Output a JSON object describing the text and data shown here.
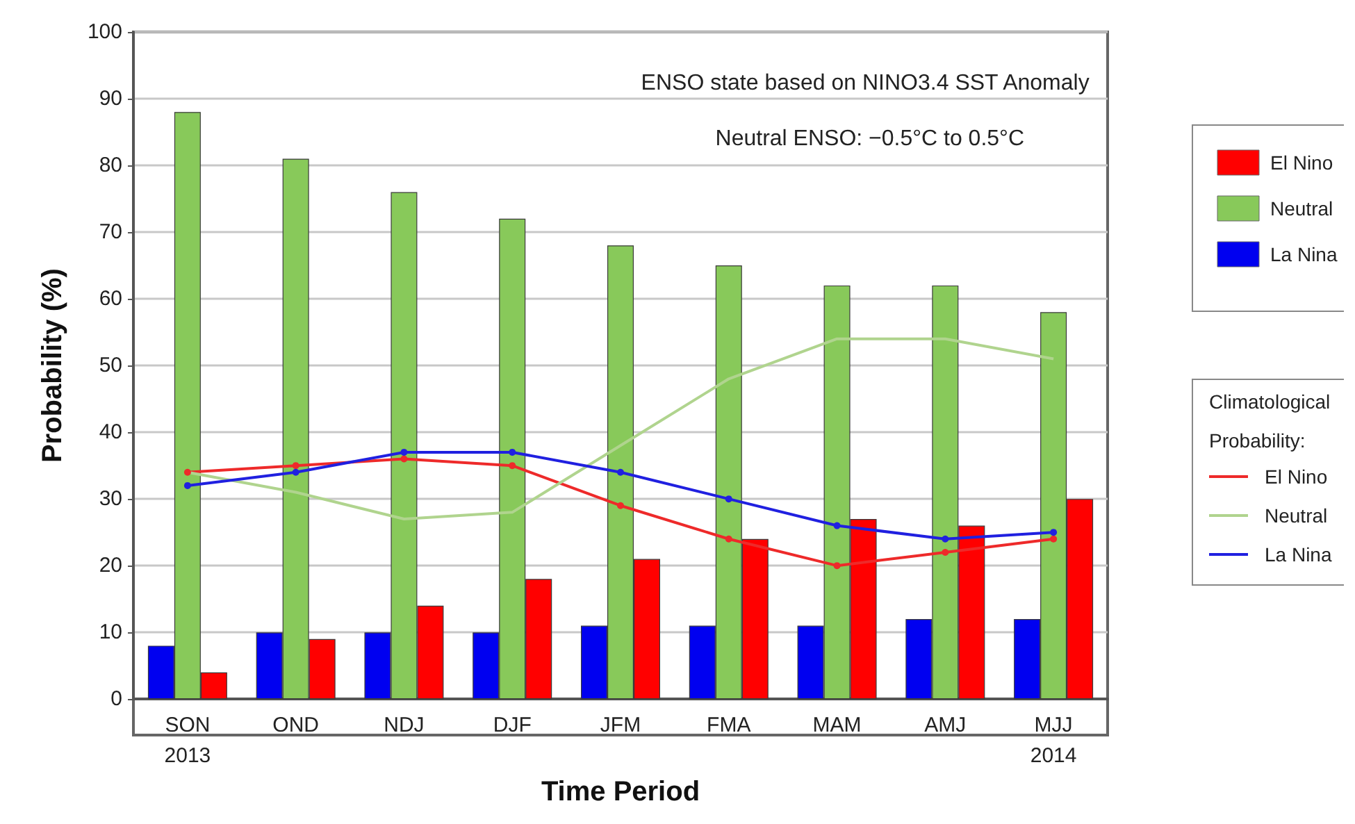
{
  "chart_data": {
    "type": "bar",
    "xlabel": "Time Period",
    "ylabel": "Probability (%)",
    "legend_title": "Climatological Probability:",
    "annotations": [
      "ENSO state based on NINO3.4 SST Anomaly",
      "Neutral ENSO: −0.5°C to 0.5°C"
    ],
    "categories": [
      "SON\n2013",
      "OND",
      "NDJ",
      "DJF",
      "JFM",
      "FMA",
      "MAM",
      "AMJ",
      "MJJ\n2014"
    ],
    "ylim": [
      0,
      100
    ],
    "yticks": [
      0,
      10,
      20,
      30,
      40,
      50,
      60,
      70,
      80,
      90,
      100
    ],
    "grid": "y",
    "legend": "right",
    "series": [
      {
        "name": "El Nino",
        "color": "#ff0000",
        "values": [
          4,
          9,
          14,
          18,
          21,
          24,
          27,
          26,
          30
        ]
      },
      {
        "name": "Neutral",
        "color": "#88c95a",
        "values": [
          88,
          81,
          76,
          72,
          68,
          65,
          62,
          62,
          58
        ]
      },
      {
        "name": "La Nina",
        "color": "#0000f0",
        "values": [
          8,
          10,
          10,
          10,
          11,
          11,
          11,
          12,
          12
        ]
      },
      {
        "type": "line",
        "name": "El Nino",
        "color": "#ee2a2a",
        "marker": "circle",
        "values": [
          34,
          35,
          36,
          35,
          29,
          24,
          20,
          22,
          24
        ]
      },
      {
        "type": "line",
        "name": "Neutral",
        "color": "#b0d48e",
        "marker": "none",
        "values": [
          34,
          31,
          27,
          28,
          38,
          48,
          54,
          54,
          51
        ]
      },
      {
        "type": "line",
        "name": "La Nina",
        "color": "#2020e0",
        "marker": "circle",
        "values": [
          32,
          34,
          37,
          37,
          34,
          30,
          26,
          24,
          25
        ]
      }
    ]
  }
}
